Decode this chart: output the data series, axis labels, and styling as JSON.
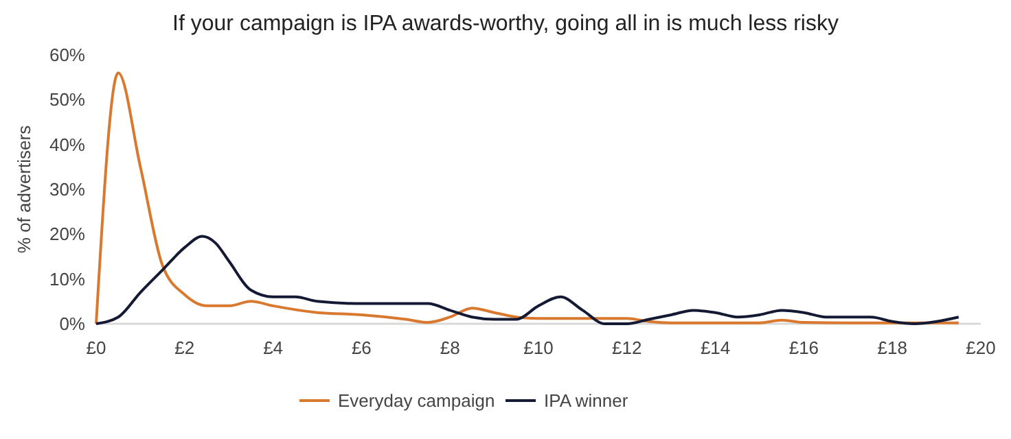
{
  "chart_data": {
    "type": "line",
    "title": "If your campaign is IPA awards-worthy, going all in is much less risky",
    "ylabel": "% of advertisers",
    "xlim": [
      0,
      20
    ],
    "xticks": [
      {
        "value": 0,
        "label": "£0"
      },
      {
        "value": 2,
        "label": "£2"
      },
      {
        "value": 4,
        "label": "£4"
      },
      {
        "value": 6,
        "label": "£6"
      },
      {
        "value": 8,
        "label": "£8"
      },
      {
        "value": 10,
        "label": "£10"
      },
      {
        "value": 12,
        "label": "£12"
      },
      {
        "value": 14,
        "label": "£14"
      },
      {
        "value": 16,
        "label": "£16"
      },
      {
        "value": 18,
        "label": "£18"
      },
      {
        "value": 20,
        "label": "£20"
      }
    ],
    "ylim": [
      0,
      60
    ],
    "yticks": [
      {
        "value": 0,
        "label": "0%"
      },
      {
        "value": 10,
        "label": "10%"
      },
      {
        "value": 20,
        "label": "20%"
      },
      {
        "value": 30,
        "label": "30%"
      },
      {
        "value": 40,
        "label": "40%"
      },
      {
        "value": 50,
        "label": "50%"
      },
      {
        "value": 60,
        "label": "60%"
      }
    ],
    "grid": false,
    "legend": "bottom",
    "marker": "none",
    "line_style": "solid",
    "series": [
      {
        "name": "Everyday campaign",
        "color": "#d9792f",
        "x": [
          0,
          0.5,
          1,
          1.5,
          2,
          2.5,
          3,
          3.5,
          4,
          5,
          6,
          7,
          7.5,
          8,
          8.5,
          9,
          9.5,
          10,
          11,
          12,
          12.5,
          13,
          14,
          15,
          15.5,
          16,
          17,
          18,
          19,
          19.5
        ],
        "values": [
          0,
          56,
          35,
          13,
          6.5,
          4,
          4,
          5,
          4,
          2.5,
          2,
          1,
          0.3,
          1.5,
          3.5,
          2.5,
          1.5,
          1.2,
          1.2,
          1.2,
          0.5,
          0.2,
          0.2,
          0.2,
          0.8,
          0.3,
          0.2,
          0.2,
          0.2,
          0.2
        ]
      },
      {
        "name": "IPA winner",
        "color": "#141a33",
        "x": [
          0,
          0.5,
          1,
          1.5,
          2,
          2.4,
          2.7,
          3,
          3.5,
          4,
          4.5,
          5,
          6,
          7,
          7.5,
          8,
          8.5,
          9,
          9.5,
          10,
          10.5,
          11,
          11.5,
          12,
          12.5,
          13,
          13.5,
          14,
          14.5,
          15,
          15.5,
          16,
          16.5,
          17,
          17.5,
          18,
          18.5,
          19,
          19.5
        ],
        "values": [
          0,
          1.5,
          7,
          12,
          17,
          19.5,
          18,
          14,
          7.5,
          6,
          6,
          5,
          4.5,
          4.5,
          4.5,
          3,
          1.5,
          1,
          1,
          4,
          6,
          3,
          0,
          0,
          1,
          2,
          3,
          2.5,
          1.5,
          2,
          3,
          2.5,
          1.5,
          1.5,
          1.5,
          0.5,
          0,
          0.5,
          1.5
        ]
      }
    ]
  }
}
